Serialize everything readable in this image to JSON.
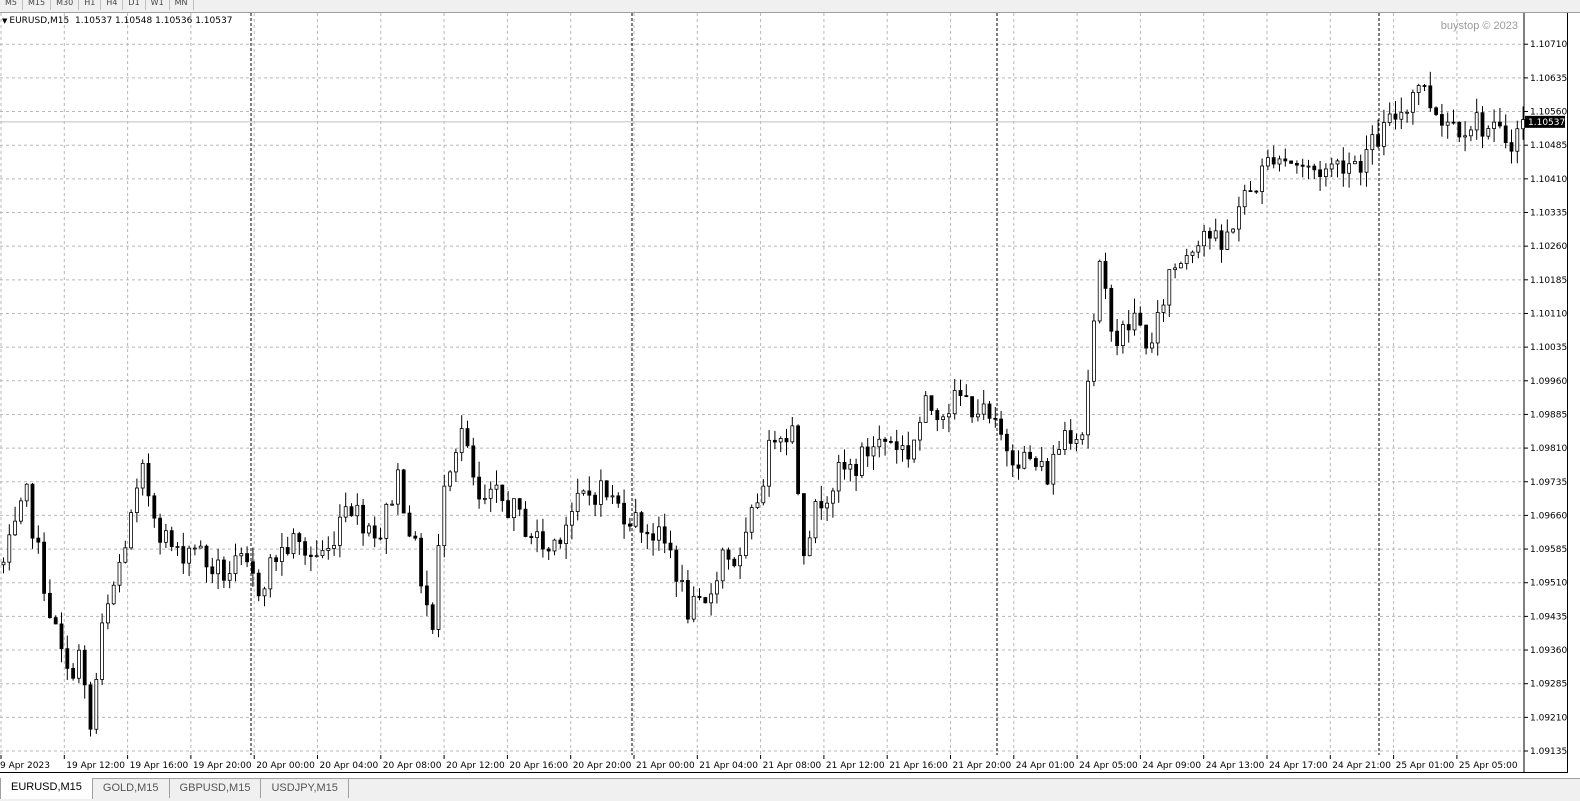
{
  "toolbar": {
    "timeframes": [
      "M5",
      "M15",
      "M30",
      "H1",
      "H4",
      "D1",
      "W1",
      "MN"
    ]
  },
  "chart_header": {
    "symbol": "EURUSD,M15",
    "ohlc": "1.10537 1.10548 1.10536 1.10537",
    "watermark": "buystop © 2023"
  },
  "chart_data": {
    "type": "candlestick",
    "symbol": "EURUSD",
    "timeframe": "M15",
    "ylim": [
      1.09135,
      1.10735
    ],
    "y_ticks": [
      "1.10710",
      "1.10635",
      "1.10560",
      "1.10485",
      "1.10410",
      "1.10335",
      "1.10260",
      "1.10185",
      "1.10110",
      "1.10035",
      "1.09960",
      "1.09885",
      "1.09810",
      "1.09735",
      "1.09660",
      "1.09585",
      "1.09510",
      "1.09435",
      "1.09360",
      "1.09285",
      "1.09210",
      "1.09135"
    ],
    "current_price": "1.10537",
    "x_ticks": [
      "9 Apr 2023",
      "19 Apr 12:00",
      "19 Apr 16:00",
      "19 Apr 20:00",
      "20 Apr 00:00",
      "20 Apr 04:00",
      "20 Apr 08:00",
      "20 Apr 12:00",
      "20 Apr 16:00",
      "20 Apr 20:00",
      "21 Apr 00:00",
      "21 Apr 04:00",
      "21 Apr 08:00",
      "21 Apr 12:00",
      "21 Apr 16:00",
      "21 Apr 20:00",
      "24 Apr 01:00",
      "24 Apr 05:00",
      "24 Apr 09:00",
      "24 Apr 13:00",
      "24 Apr 17:00",
      "24 Apr 21:00",
      "25 Apr 01:00",
      "25 Apr 05:00"
    ],
    "day_separators": [
      "20 Apr 00:00",
      "21 Apr 00:00",
      "24 Apr 00:00",
      "25 Apr 00:00"
    ],
    "price_path": [
      [
        0,
        1.0955
      ],
      [
        4,
        1.097
      ],
      [
        8,
        1.0945
      ],
      [
        11,
        1.093
      ],
      [
        13,
        1.0935
      ],
      [
        15,
        1.0918
      ],
      [
        17,
        1.094
      ],
      [
        20,
        1.0955
      ],
      [
        24,
        1.0975
      ],
      [
        27,
        1.0963
      ],
      [
        30,
        1.0957
      ],
      [
        33,
        1.096
      ],
      [
        35,
        1.0955
      ],
      [
        38,
        1.0953
      ],
      [
        41,
        1.0955
      ],
      [
        44,
        1.095
      ],
      [
        47,
        1.0957
      ],
      [
        50,
        1.096
      ],
      [
        53,
        1.0957
      ],
      [
        56,
        1.0958
      ],
      [
        59,
        1.097
      ],
      [
        62,
        1.0965
      ],
      [
        65,
        1.0962
      ],
      [
        68,
        1.0975
      ],
      [
        71,
        1.0958
      ],
      [
        74,
        1.094
      ],
      [
        76,
        1.0975
      ],
      [
        79,
        1.0985
      ],
      [
        82,
        1.0968
      ],
      [
        85,
        1.097
      ],
      [
        88,
        1.0967
      ],
      [
        91,
        1.0962
      ],
      [
        94,
        1.0958
      ],
      [
        97,
        1.0965
      ],
      [
        100,
        1.097
      ],
      [
        103,
        1.0972
      ],
      [
        106,
        1.0968
      ],
      [
        109,
        1.0965
      ],
      [
        112,
        1.0962
      ],
      [
        115,
        1.0958
      ],
      [
        118,
        1.0945
      ],
      [
        121,
        1.0945
      ],
      [
        124,
        1.0958
      ],
      [
        127,
        1.0955
      ],
      [
        130,
        1.097
      ],
      [
        133,
        1.0985
      ],
      [
        136,
        1.0985
      ],
      [
        138,
        1.096
      ],
      [
        141,
        1.097
      ],
      [
        144,
        1.0975
      ],
      [
        147,
        1.0977
      ],
      [
        150,
        1.0982
      ],
      [
        153,
        1.0983
      ],
      [
        156,
        1.098
      ],
      [
        159,
        1.099
      ],
      [
        162,
        1.099
      ],
      [
        165,
        1.0992
      ],
      [
        168,
        1.099
      ],
      [
        171,
        1.0985
      ],
      [
        174,
        1.098
      ],
      [
        177,
        1.0978
      ],
      [
        180,
        1.0975
      ],
      [
        183,
        1.0985
      ],
      [
        186,
        1.0985
      ],
      [
        189,
        1.102
      ],
      [
        192,
        1.1005
      ],
      [
        195,
        1.101
      ],
      [
        198,
        1.1003
      ],
      [
        201,
        1.102
      ],
      [
        204,
        1.1025
      ],
      [
        207,
        1.103
      ],
      [
        210,
        1.1025
      ],
      [
        213,
        1.1035
      ],
      [
        216,
        1.104
      ],
      [
        219,
        1.1047
      ],
      [
        222,
        1.1045
      ],
      [
        225,
        1.1043
      ],
      [
        228,
        1.1043
      ],
      [
        231,
        1.1045
      ],
      [
        234,
        1.1045
      ],
      [
        237,
        1.105
      ],
      [
        240,
        1.1055
      ],
      [
        242,
        1.1058
      ],
      [
        244,
        1.1063
      ],
      [
        246,
        1.1058
      ],
      [
        248,
        1.1055
      ],
      [
        251,
        1.1053
      ],
      [
        254,
        1.1054
      ],
      [
        257,
        1.1051
      ],
      [
        260,
        1.105
      ],
      [
        262,
        1.1053
      ]
    ]
  },
  "tabs": [
    "EURUSD,M15",
    "GOLD,M15",
    "GBPUSD,M15",
    "USDJPY,M15"
  ]
}
